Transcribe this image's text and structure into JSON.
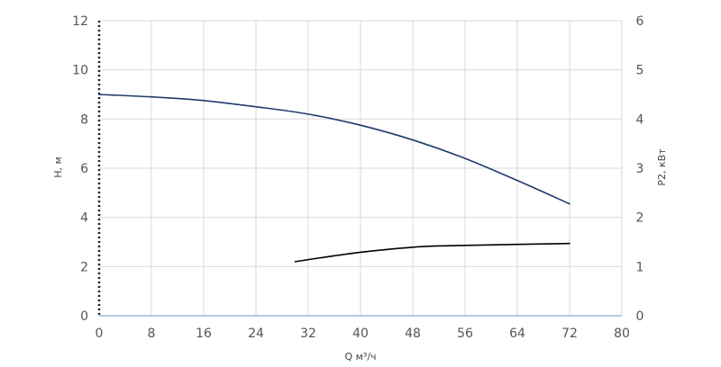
{
  "chart_data": {
    "type": "line",
    "xlabel": "Q м³/ч",
    "ylabel": "H, м",
    "y2label": "P2, кВт",
    "xlim": [
      0,
      80
    ],
    "ylim": [
      0,
      12
    ],
    "y2lim": [
      0,
      6
    ],
    "xticks": [
      0,
      8,
      16,
      24,
      32,
      40,
      48,
      56,
      64,
      72,
      80
    ],
    "yticks": [
      0,
      2,
      4,
      6,
      8,
      10,
      12
    ],
    "y2ticks": [
      0,
      1,
      2,
      3,
      4,
      5,
      6
    ],
    "grid": true,
    "series": [
      {
        "axis": "left",
        "color": "#1f3a6e",
        "x": [
          0,
          8,
          16,
          24,
          32,
          40,
          48,
          56,
          64,
          72
        ],
        "y": [
          9.0,
          8.9,
          8.75,
          8.5,
          8.2,
          7.75,
          7.15,
          6.4,
          5.5,
          4.55
        ]
      },
      {
        "axis": "right",
        "color": "#000000",
        "x": [
          30,
          35,
          40,
          45,
          50,
          56,
          64,
          72
        ],
        "y": [
          1.1,
          1.2,
          1.29,
          1.36,
          1.41,
          1.43,
          1.45,
          1.47
        ]
      }
    ]
  }
}
